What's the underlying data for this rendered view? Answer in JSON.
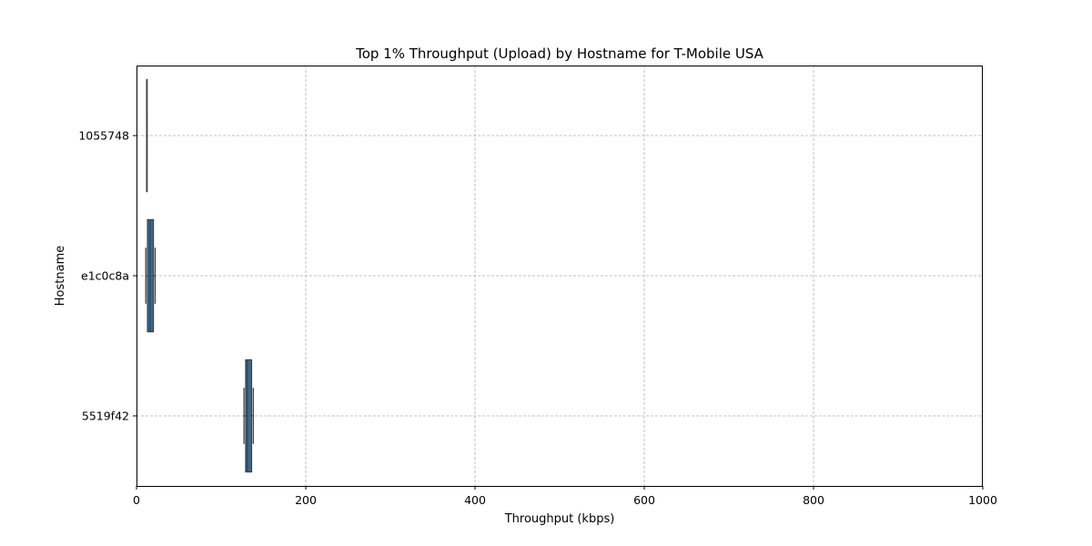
{
  "chart_data": {
    "type": "box",
    "orientation": "horizontal",
    "title": "Top 1% Throughput (Upload) by Hostname for T-Mobile USA",
    "xlabel": "Throughput (kbps)",
    "ylabel": "Hostname",
    "xlim": [
      0,
      1000
    ],
    "xticks": [
      0,
      200,
      400,
      600,
      800,
      1000
    ],
    "grid": true,
    "categories": [
      "1055748",
      "e1c0c8a",
      "5519f42"
    ],
    "boxes": [
      {
        "category": "1055748",
        "whisker_low": 12,
        "q1": 12,
        "median": 12,
        "q3": 12.3,
        "whisker_high": 12.3
      },
      {
        "category": "e1c0c8a",
        "whisker_low": 11,
        "q1": 13,
        "median": 16,
        "q3": 20,
        "whisker_high": 22
      },
      {
        "category": "5519f42",
        "whisker_low": 127,
        "q1": 129,
        "median": 131,
        "q3": 136,
        "whisker_high": 138
      }
    ],
    "colors": {
      "box": "#2e6e9e",
      "box_edge": "#3f3f3f",
      "grid": "#b0b0b0"
    }
  }
}
